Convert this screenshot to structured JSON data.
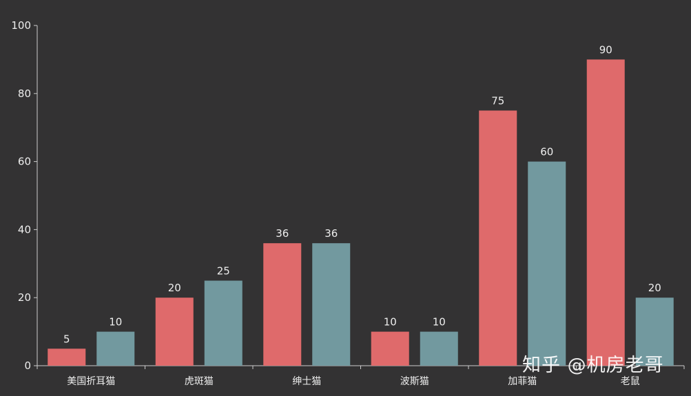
{
  "chart_data": {
    "type": "bar",
    "categories": [
      "美国折耳猫",
      "虎斑猫",
      "绅士猫",
      "波斯猫",
      "加菲猫",
      "老鼠"
    ],
    "series": [
      {
        "values": [
          5,
          20,
          36,
          10,
          75,
          90
        ],
        "color": "#DF6A6B"
      },
      {
        "values": [
          10,
          25,
          36,
          10,
          60,
          20
        ],
        "color": "#72999F"
      }
    ],
    "y_ticks": [
      0,
      20,
      40,
      60,
      80,
      100
    ],
    "ylim": [
      0,
      100
    ],
    "grid": false,
    "data_labels": true
  },
  "colors": {
    "background": "#333233",
    "axis": "#CCCCCC",
    "text": "#EEEEEE"
  },
  "watermark": "知乎 @机房老哥"
}
